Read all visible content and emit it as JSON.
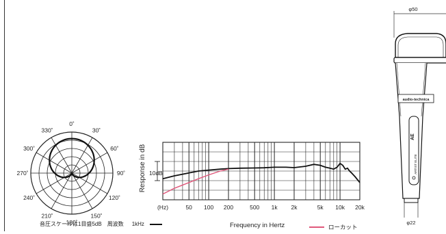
{
  "polar": {
    "angle_labels": [
      "0˚",
      "30˚",
      "60˚",
      "90˚",
      "120˚",
      "150˚",
      "180˚",
      "210˚",
      "240˚",
      "270˚",
      "300˚",
      "330˚"
    ],
    "scale_note": "音圧スケールは1目盛5dB",
    "freq_label": "周波数",
    "freq_value": "1kHz",
    "line_color": "#111111"
  },
  "chart_data": {
    "type": "line",
    "xlabel": "Frequency in Hertz",
    "ylabel": "Response in dB",
    "x_scale": "log",
    "xlim": [
      20,
      20000
    ],
    "x_tick_labels": [
      "(Hz)",
      "50",
      "100",
      "200",
      "500",
      "1k",
      "2k",
      "5k",
      "10k",
      "20k"
    ],
    "x_ticks": [
      20,
      50,
      100,
      200,
      500,
      1000,
      2000,
      5000,
      10000,
      20000
    ],
    "y_scale_label": "10dB",
    "ylim": [
      -15,
      15
    ],
    "grid": true,
    "series": [
      {
        "color": "#111111",
        "x": [
          20,
          30,
          50,
          70,
          100,
          150,
          200,
          300,
          500,
          700,
          1000,
          1500,
          2000,
          3000,
          4000,
          5000,
          6000,
          7000,
          8000,
          9000,
          10000,
          11000,
          12000,
          13000,
          14000,
          15000,
          17000,
          20000
        ],
        "y": [
          -4,
          -2.5,
          -1,
          0,
          0.5,
          1,
          1.3,
          1.5,
          1.6,
          1.7,
          2,
          2,
          1.8,
          2.5,
          3.5,
          3,
          2,
          1.5,
          1,
          2,
          4,
          3,
          1,
          1.5,
          0,
          -1,
          -3,
          -6
        ]
      },
      {
        "name": "ローカット",
        "color": "#e0577a",
        "x": [
          20,
          30,
          50,
          70,
          100,
          150,
          200
        ],
        "y": [
          -12,
          -9,
          -6,
          -4,
          -2,
          0,
          1
        ]
      }
    ],
    "legend_label": "ローカット"
  },
  "mic": {
    "top_diameter": "φ50",
    "bottom_diameter": "φ22",
    "brand": "audio-technica",
    "side_text": "ARTIST ELITE",
    "model": "AE"
  }
}
